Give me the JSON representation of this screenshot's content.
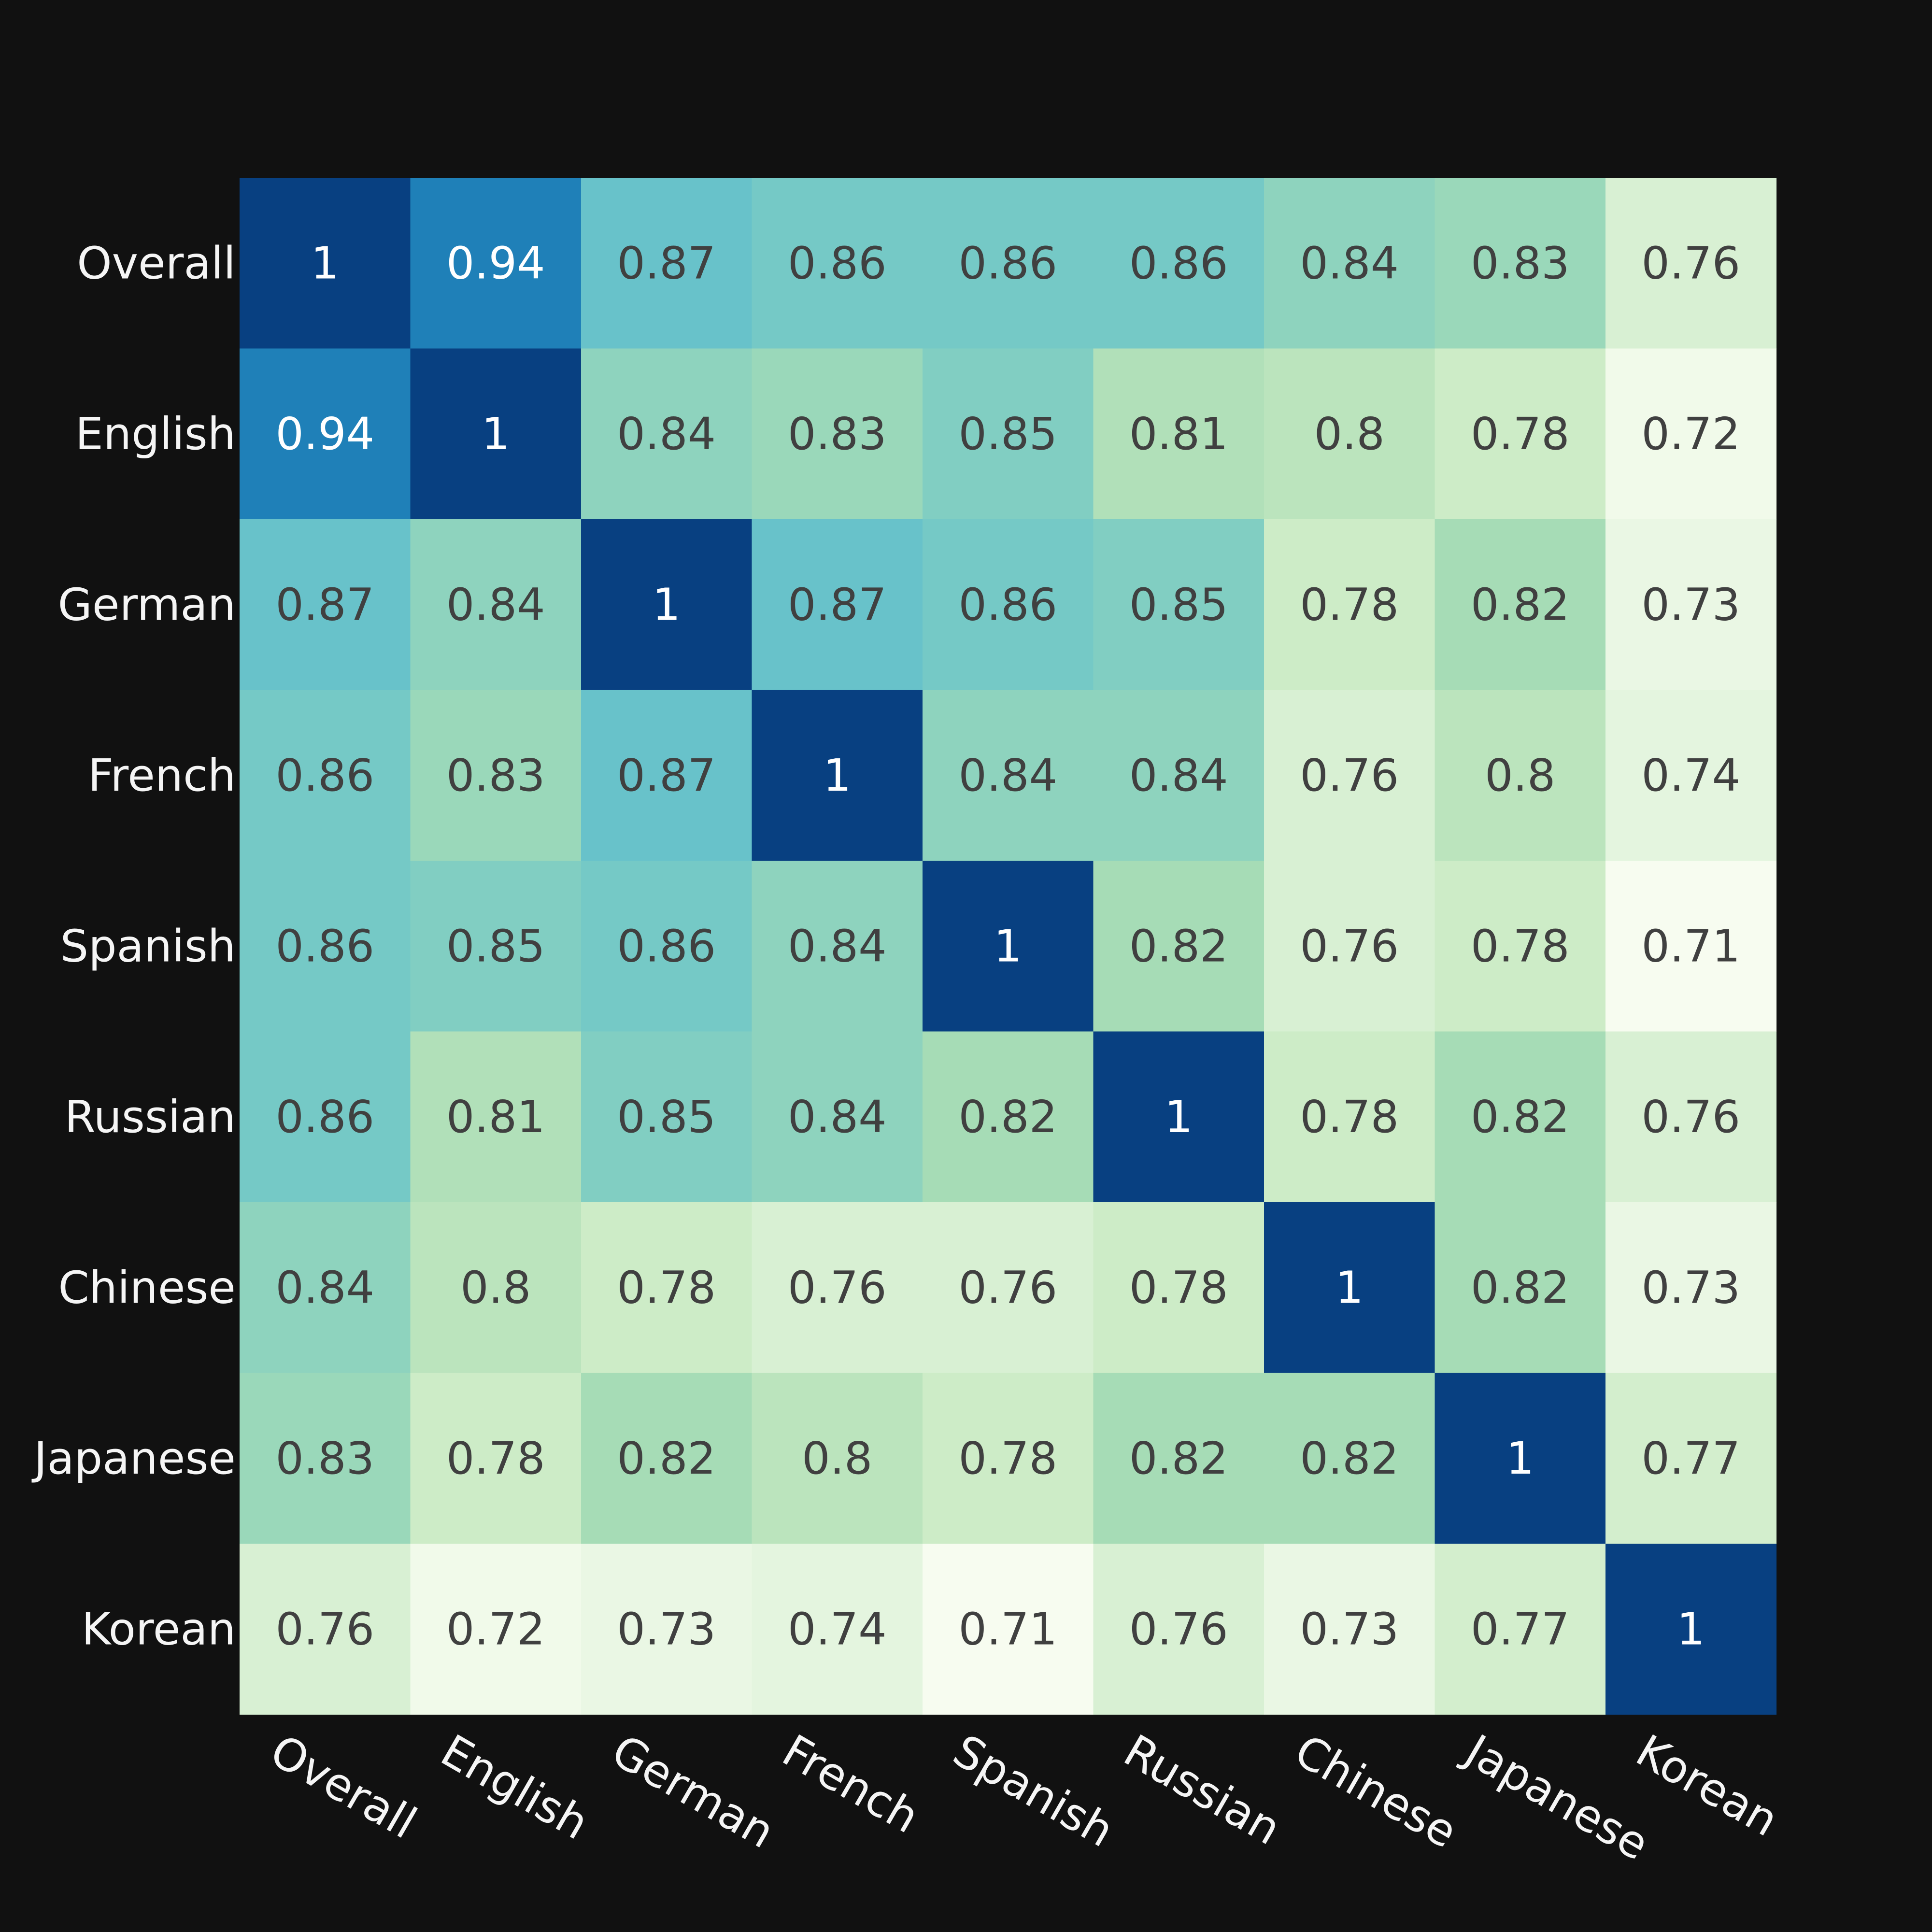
{
  "chart_data": {
    "type": "heatmap",
    "title": "",
    "xlabel": "",
    "ylabel": "",
    "colormap": "GnBu",
    "vmin": 0.71,
    "vmax": 1,
    "background": "#111111",
    "labels": [
      "Overall",
      "English",
      "German",
      "French",
      "Spanish",
      "Russian",
      "Chinese",
      "Japanese",
      "Korean"
    ],
    "matrix": [
      [
        1,
        0.94,
        0.87,
        0.86,
        0.86,
        0.86,
        0.84,
        0.83,
        0.76
      ],
      [
        0.94,
        1,
        0.84,
        0.83,
        0.85,
        0.81,
        0.8,
        0.78,
        0.72
      ],
      [
        0.87,
        0.84,
        1,
        0.87,
        0.86,
        0.85,
        0.78,
        0.82,
        0.73
      ],
      [
        0.86,
        0.83,
        0.87,
        1,
        0.84,
        0.84,
        0.76,
        0.8,
        0.74
      ],
      [
        0.86,
        0.85,
        0.86,
        0.84,
        1,
        0.82,
        0.76,
        0.78,
        0.71
      ],
      [
        0.86,
        0.81,
        0.85,
        0.84,
        0.82,
        1,
        0.78,
        0.82,
        0.76
      ],
      [
        0.84,
        0.8,
        0.78,
        0.76,
        0.76,
        0.78,
        1,
        0.82,
        0.73
      ],
      [
        0.83,
        0.78,
        0.82,
        0.8,
        0.78,
        0.82,
        0.82,
        1,
        0.77
      ],
      [
        0.76,
        0.72,
        0.73,
        0.74,
        0.71,
        0.76,
        0.73,
        0.77,
        1
      ]
    ]
  }
}
